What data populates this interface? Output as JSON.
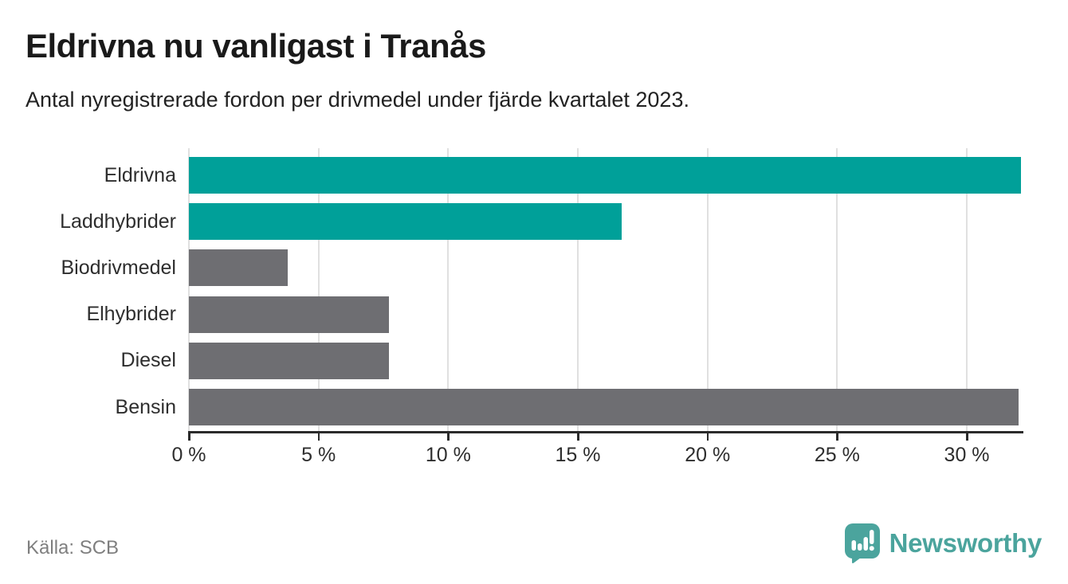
{
  "title": "Eldrivna nu vanligast i Tranås",
  "subtitle": "Antal nyregistrerade fordon per drivmedel under fjärde kvartalet 2023.",
  "source": "Källa: SCB",
  "logo": {
    "wordmark": "Newsworthy"
  },
  "colors": {
    "accent_teal": "#00a099",
    "neutral_gray": "#6e6e72",
    "logo_teal": "#4ba49d",
    "axis": "#2b2b2b",
    "gridline": "#e0e0e0",
    "title_text": "#1a1a1a",
    "label_text": "#2e2e2e",
    "source_text": "#7f7f7f"
  },
  "chart_data": {
    "type": "bar",
    "orientation": "horizontal",
    "title": "Eldrivna nu vanligast i Tranås",
    "subtitle": "Antal nyregistrerade fordon per drivmedel under fjärde kvartalet 2023.",
    "categories": [
      "Eldrivna",
      "Laddhybrider",
      "Biodrivmedel",
      "Elhybrider",
      "Diesel",
      "Bensin"
    ],
    "values": [
      32.1,
      16.7,
      3.8,
      7.7,
      7.7,
      32.0
    ],
    "bar_colors": [
      "#00a099",
      "#00a099",
      "#6e6e72",
      "#6e6e72",
      "#6e6e72",
      "#6e6e72"
    ],
    "unit": "%",
    "xlabel": "",
    "ylabel": "",
    "xlim": [
      0,
      32.15
    ],
    "xticks": [
      0,
      5,
      10,
      15,
      20,
      25,
      30
    ],
    "xtick_labels": [
      "0 %",
      "5 %",
      "10 %",
      "15 %",
      "20 %",
      "25 %",
      "30 %"
    ],
    "grid": true,
    "legend": false
  }
}
